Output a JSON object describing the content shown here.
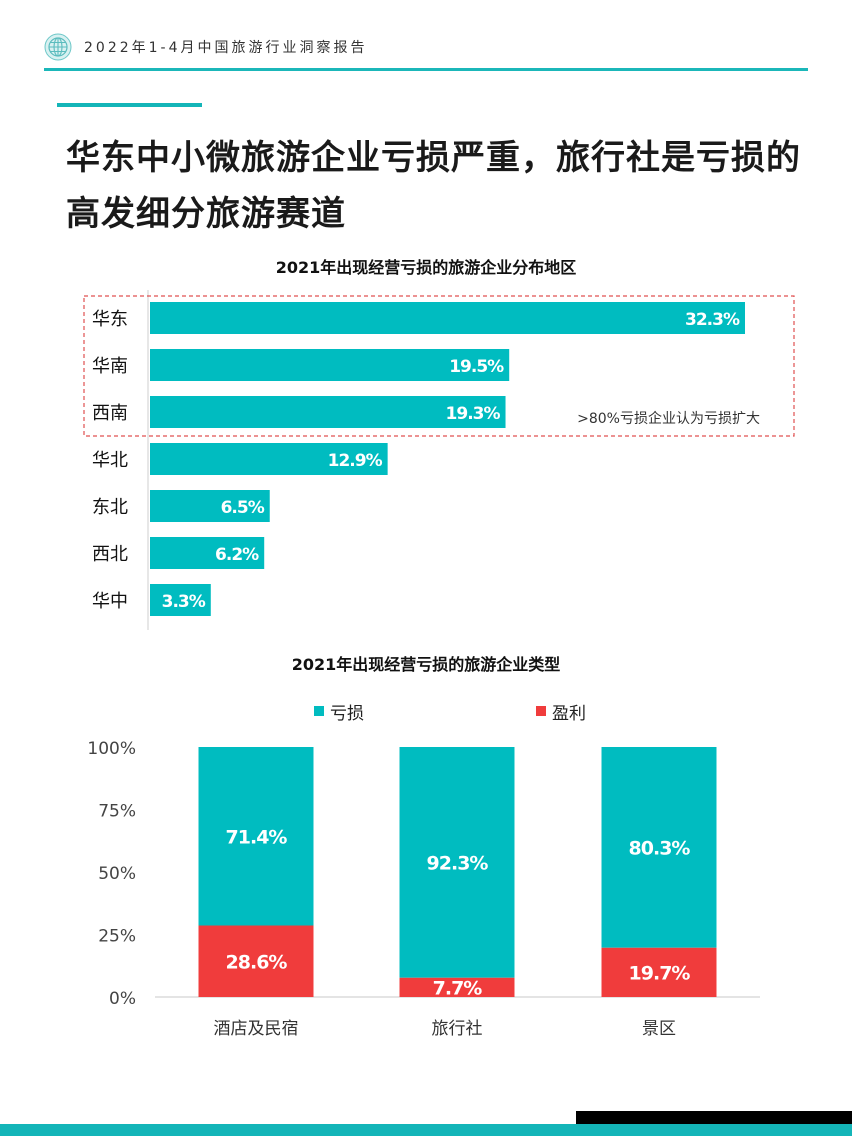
{
  "header": {
    "text": "2022年1-4月中国旅游行业洞察报告"
  },
  "page": {
    "title": "华东中小微旅游企业亏损严重，旅行社是亏损的高发细分旅游赛道"
  },
  "colors": {
    "teal": "#00BCC0",
    "red": "#F03C3C",
    "dashed": "#E05050"
  },
  "chart_data": [
    {
      "type": "bar",
      "orientation": "horizontal",
      "title": "2021年出现经营亏损的旅游企业分布地区",
      "categories": [
        "华东",
        "华南",
        "西南",
        "华北",
        "东北",
        "西北",
        "华中"
      ],
      "values": [
        32.3,
        19.5,
        19.3,
        12.9,
        6.5,
        6.2,
        3.3
      ],
      "value_labels": [
        "32.3%",
        "19.5%",
        "19.3%",
        "12.9%",
        "6.5%",
        "6.2%",
        "3.3%"
      ],
      "highlight": {
        "categories": [
          "华东",
          "华南",
          "西南"
        ],
        "annotation": ">80%亏损企业认为亏损扩大"
      },
      "xlim": [
        0,
        32.3
      ]
    },
    {
      "type": "bar",
      "stacked": true,
      "title": "2021年出现经营亏损的旅游企业类型",
      "categories": [
        "酒店及民宿",
        "旅行社",
        "景区"
      ],
      "series": [
        {
          "name": "盈利",
          "values": [
            28.6,
            7.7,
            19.7
          ],
          "labels": [
            "28.6%",
            "7.7%",
            "19.7%"
          ]
        },
        {
          "name": "亏损",
          "values": [
            71.4,
            92.3,
            80.3
          ],
          "labels": [
            "71.4%",
            "92.3%",
            "80.3%"
          ]
        }
      ],
      "legend": [
        "亏损",
        "盈利"
      ],
      "yticks": [
        "100%",
        "75%",
        "50%",
        "25%",
        "0%"
      ],
      "ylim": [
        0,
        100
      ]
    }
  ]
}
